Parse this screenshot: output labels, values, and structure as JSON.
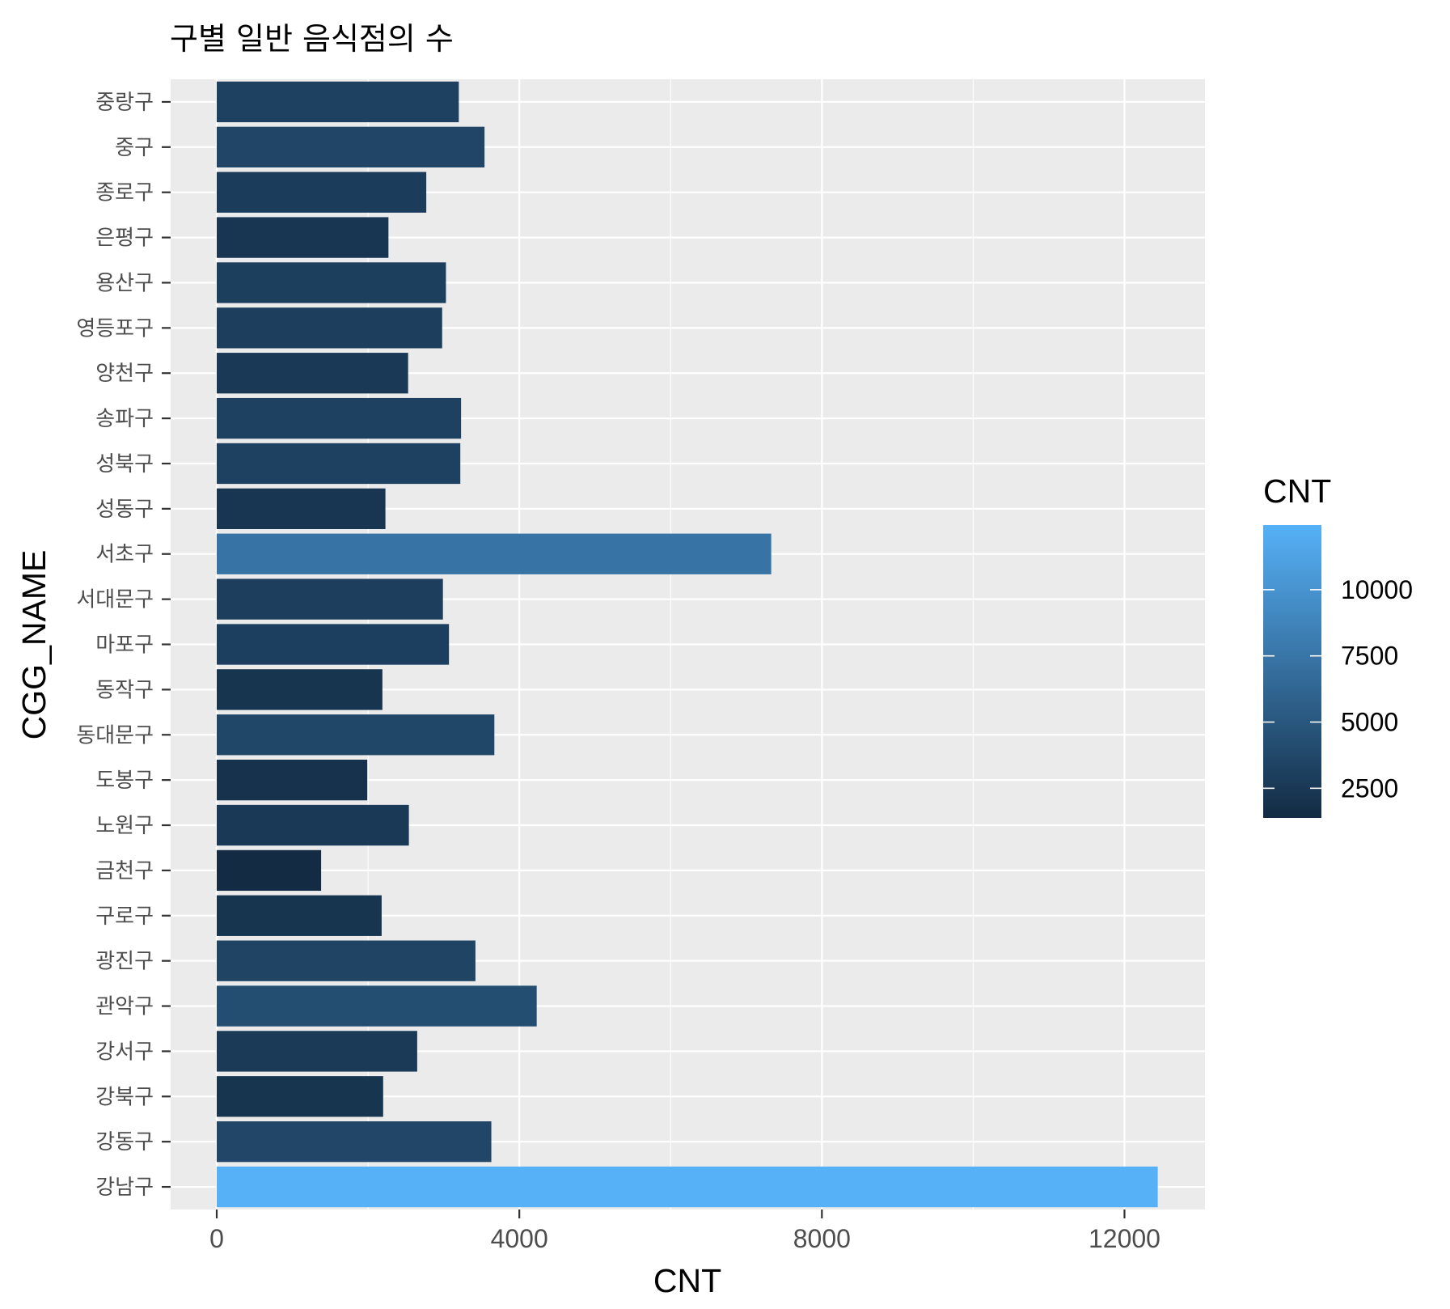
{
  "chart_data": {
    "type": "bar",
    "orientation": "horizontal",
    "title": "구별 일반 음식점의 수",
    "xlabel": "CNT",
    "ylabel": "CGG_NAME",
    "xlim": [
      0,
      12500
    ],
    "x_ticks": [
      "0",
      "4000",
      "8000",
      "12000"
    ],
    "grid": true,
    "categories": [
      "강남구",
      "강동구",
      "강북구",
      "강서구",
      "관악구",
      "광진구",
      "구로구",
      "금천구",
      "노원구",
      "도봉구",
      "동대문구",
      "동작구",
      "마포구",
      "서대문구",
      "서초구",
      "성동구",
      "성북구",
      "송파구",
      "양천구",
      "영등포구",
      "용산구",
      "은평구",
      "종로구",
      "중구",
      "중랑구"
    ],
    "values": [
      12440,
      3630,
      2200,
      2650,
      4230,
      3420,
      2180,
      1380,
      2540,
      1990,
      3670,
      2190,
      3070,
      2990,
      7330,
      2230,
      3220,
      3230,
      2530,
      2980,
      3030,
      2270,
      2770,
      3540,
      3200
    ],
    "legend": {
      "title": "CNT",
      "position": "right",
      "type": "colorbar",
      "labels": [
        "2500",
        "5000",
        "7500",
        "10000"
      ],
      "tick_values": [
        2500,
        5000,
        7500,
        10000
      ],
      "low_color": "#132B43",
      "high_color": "#56B1F7"
    }
  }
}
